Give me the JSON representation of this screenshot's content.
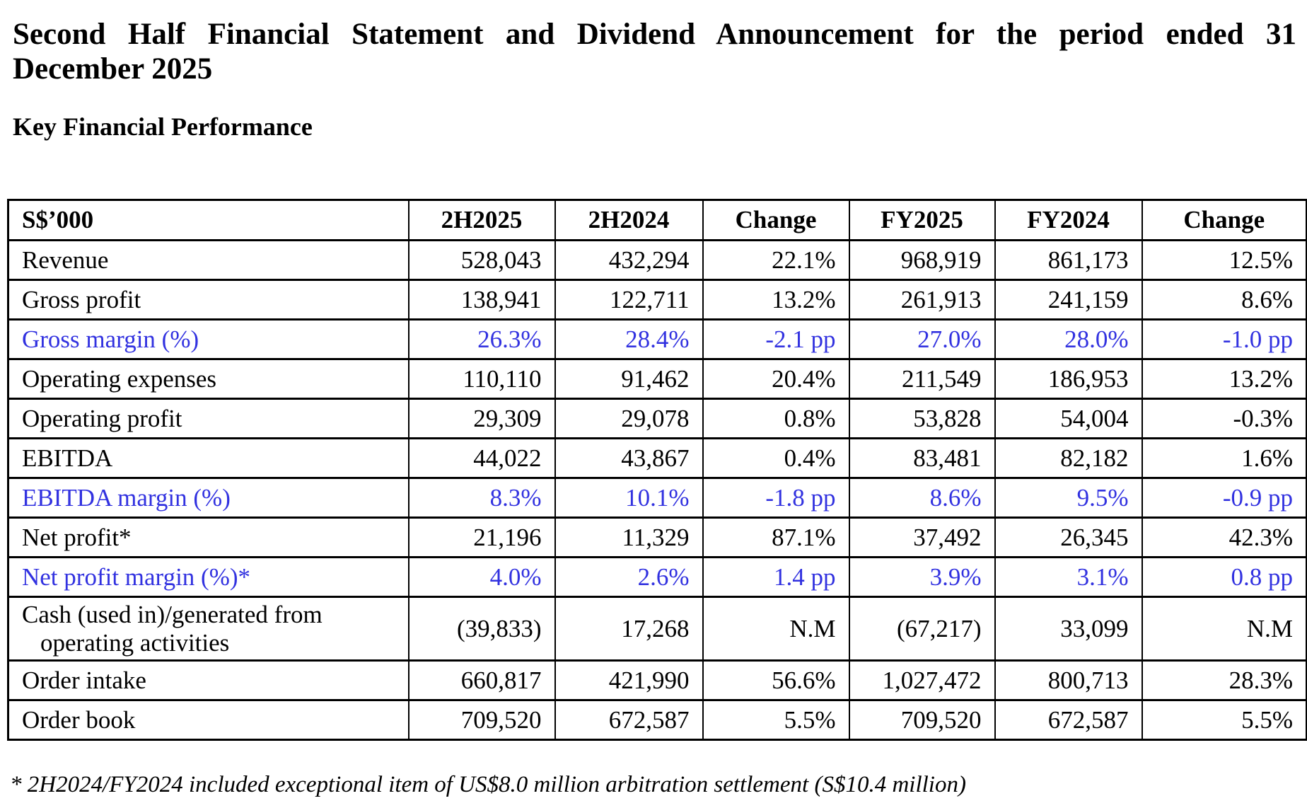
{
  "page": {
    "title_line1": "Second Half Financial Statement and Dividend Announcement for the period ended 31",
    "title_line2": "December 2025",
    "section_heading": "Key Financial Performance",
    "footnote": "* 2H2024/FY2024 included exceptional item of US$8.0 million arbitration settlement (S$10.4 million)"
  },
  "colors": {
    "highlight_blue": "#3232e0",
    "text": "#000000",
    "background": "#ffffff"
  },
  "table": {
    "headers": [
      "S$’000",
      "2H2025",
      "2H2024",
      "Change",
      "FY2025",
      "FY2024",
      "Change"
    ],
    "rows": [
      {
        "label": "Revenue",
        "values": [
          "528,043",
          "432,294",
          "22.1%",
          "968,919",
          "861,173",
          "12.5%"
        ],
        "highlight": false,
        "tall": false
      },
      {
        "label": "Gross profit",
        "values": [
          "138,941",
          "122,711",
          "13.2%",
          "261,913",
          "241,159",
          "8.6%"
        ],
        "highlight": false,
        "tall": false
      },
      {
        "label": "Gross margin (%)",
        "values": [
          "26.3%",
          "28.4%",
          "-2.1 pp",
          "27.0%",
          "28.0%",
          "-1.0 pp"
        ],
        "highlight": true,
        "tall": false
      },
      {
        "label": "Operating expenses",
        "values": [
          "110,110",
          "91,462",
          "20.4%",
          "211,549",
          "186,953",
          "13.2%"
        ],
        "highlight": false,
        "tall": false
      },
      {
        "label": "Operating profit",
        "values": [
          "29,309",
          "29,078",
          "0.8%",
          "53,828",
          "54,004",
          "-0.3%"
        ],
        "highlight": false,
        "tall": false
      },
      {
        "label": "EBITDA",
        "values": [
          "44,022",
          "43,867",
          "0.4%",
          "83,481",
          "82,182",
          "1.6%"
        ],
        "highlight": false,
        "tall": false
      },
      {
        "label": "EBITDA margin (%)",
        "values": [
          "8.3%",
          "10.1%",
          "-1.8 pp",
          "8.6%",
          "9.5%",
          "-0.9 pp"
        ],
        "highlight": true,
        "tall": false
      },
      {
        "label": "Net profit*",
        "values": [
          "21,196",
          "11,329",
          "87.1%",
          "37,492",
          "26,345",
          "42.3%"
        ],
        "highlight": false,
        "tall": false
      },
      {
        "label": "Net profit margin (%)*",
        "values": [
          "4.0%",
          "2.6%",
          "1.4 pp",
          "3.9%",
          "3.1%",
          "0.8 pp"
        ],
        "highlight": true,
        "tall": false
      },
      {
        "label": "Cash (used in)/generated from",
        "label_line2": "operating activities",
        "values": [
          "(39,833)",
          "17,268",
          "N.M",
          "(67,217)",
          "33,099",
          "N.M"
        ],
        "highlight": false,
        "tall": true
      },
      {
        "label": "Order intake",
        "values": [
          "660,817",
          "421,990",
          "56.6%",
          "1,027,472",
          "800,713",
          "28.3%"
        ],
        "highlight": false,
        "tall": false
      },
      {
        "label": "Order book",
        "values": [
          "709,520",
          "672,587",
          "5.5%",
          "709,520",
          "672,587",
          "5.5%"
        ],
        "highlight": false,
        "tall": false
      }
    ]
  }
}
